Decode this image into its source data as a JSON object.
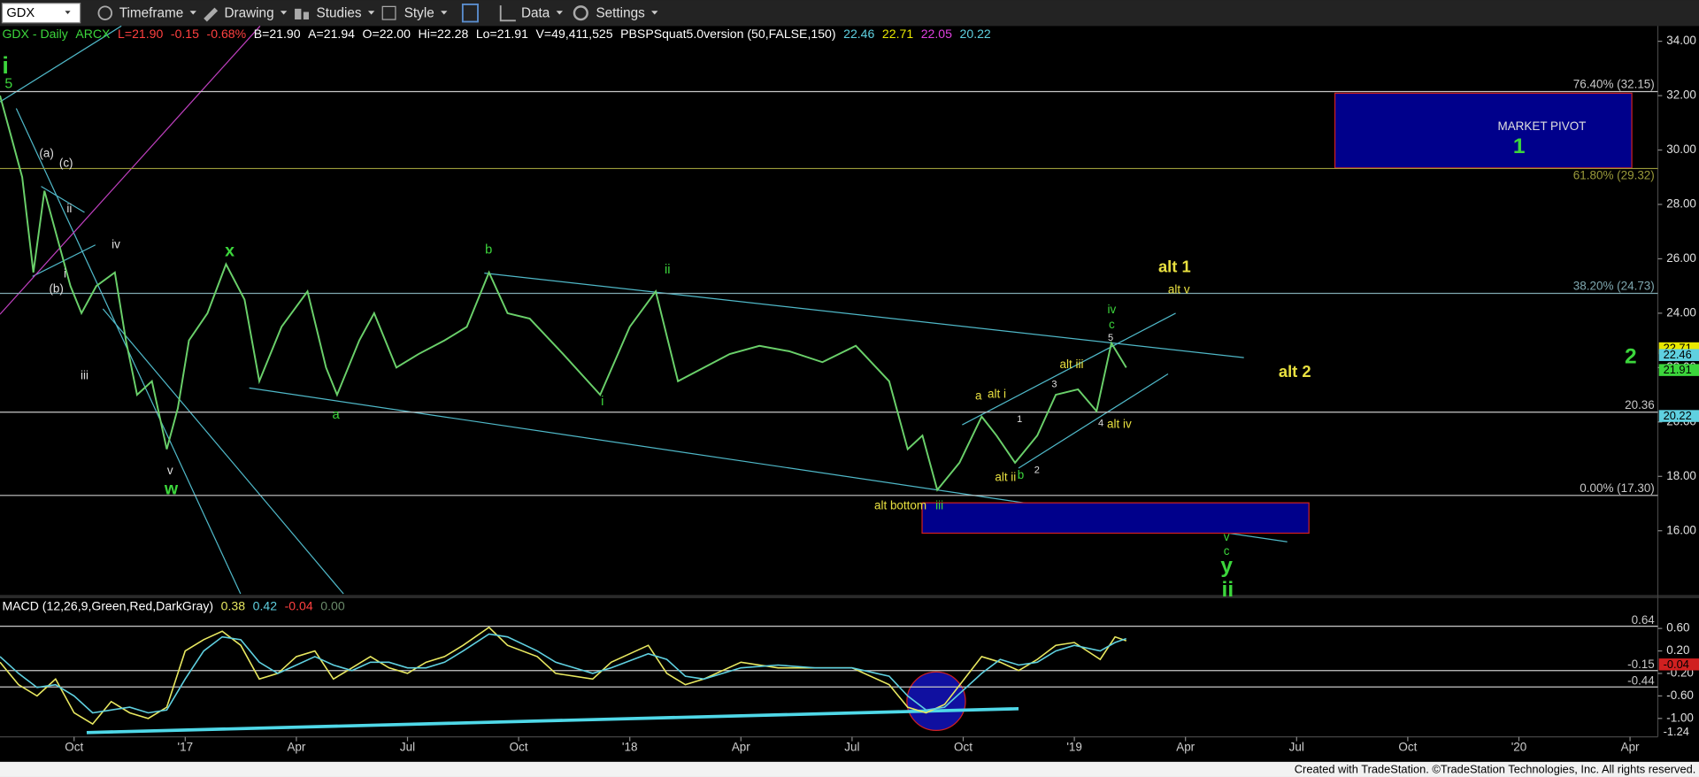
{
  "toolbar": {
    "symbol": "GDX",
    "menus": [
      "Timeframe",
      "Drawing",
      "Studies",
      "Style",
      "Data",
      "Settings"
    ]
  },
  "header": [
    {
      "text": "GDX - Daily",
      "color": "#3cd63c"
    },
    {
      "text": "ARCX",
      "color": "#3cd63c"
    },
    {
      "text": "L=21.90",
      "color": "#ff4040"
    },
    {
      "text": "-0.15",
      "color": "#ff4040"
    },
    {
      "text": "-0.68%",
      "color": "#ff4040"
    },
    {
      "text": "B=21.90",
      "color": "#ffffff"
    },
    {
      "text": "A=21.94",
      "color": "#ffffff"
    },
    {
      "text": "O=22.00",
      "color": "#ffffff"
    },
    {
      "text": "Hi=22.28",
      "color": "#ffffff"
    },
    {
      "text": "Lo=21.91",
      "color": "#ffffff"
    },
    {
      "text": "V=49,411,525",
      "color": "#ffffff"
    },
    {
      "text": "PBSPSquat5.0version (50,FALSE,150)",
      "color": "#ffffff"
    },
    {
      "text": "22.46",
      "color": "#5fd0e0"
    },
    {
      "text": "22.71",
      "color": "#e8e800"
    },
    {
      "text": "22.05",
      "color": "#e040e0"
    },
    {
      "text": "20.22",
      "color": "#5fd0e0"
    }
  ],
  "footer": "Created with TradeStation. ©TradeStation Technologies, Inc. All rights reserved.",
  "chart_data": [
    {
      "type": "line",
      "color": "#6ad06a",
      "x": [
        -1,
        -0.7,
        -0.4,
        -0.1,
        0.2,
        0.6,
        0.9,
        1.2,
        1.6,
        2.1,
        2.4,
        2.7,
        3.1,
        3.5,
        3.8,
        4.1,
        4.6,
        5.1,
        5.6,
        6.0,
        6.6,
        7.3,
        7.8,
        8.1,
        8.7,
        9.1,
        9.7,
        10.3,
        11.0,
        11.6,
        12.2,
        12.7,
        13.3,
        14.2,
        15.2,
        16.0,
        16.7,
        17.3,
        18.0,
        18.7,
        19.5,
        20.3,
        21.2,
        22.1,
        23.0,
        23.5,
        23.9,
        24.3,
        24.9,
        25.5,
        25.9,
        26.4,
        27.0,
        27.5,
        28.1,
        28.6,
        29.0,
        29.4
      ],
      "values": [
        32,
        30.5,
        29,
        25.5,
        28.5,
        26.5,
        25,
        24,
        25,
        25.5,
        23,
        21,
        21.5,
        19,
        20.5,
        23,
        24,
        25.8,
        24.5,
        21.5,
        23.5,
        24.8,
        22,
        21,
        23,
        24,
        22,
        22.5,
        23,
        23.5,
        25.5,
        24,
        23.8,
        22.5,
        21,
        23.5,
        24.8,
        21.5,
        22,
        22.5,
        22.8,
        22.6,
        22.2,
        22.8,
        21.5,
        19,
        19.5,
        17.5,
        18.5,
        20.2,
        19.5,
        18.5,
        19.5,
        21,
        21.2,
        20.4,
        22.9,
        22
      ],
      "xlim": [
        -1,
        43.75
      ],
      "ylim": [
        13.68,
        34.56
      ],
      "yticks": [
        {
          "value": 16,
          "label": "16.00"
        },
        {
          "value": 18,
          "label": "18.00"
        },
        {
          "value": 20,
          "label": "20.00"
        },
        {
          "value": 22,
          "label": "22.00"
        },
        {
          "value": 24,
          "label": "24.00"
        },
        {
          "value": 26,
          "label": "26.00"
        },
        {
          "value": 28,
          "label": "28.00"
        },
        {
          "value": 30,
          "label": "30.00"
        },
        {
          "value": 32,
          "label": "32.00"
        },
        {
          "value": 34,
          "label": "34.00"
        }
      ],
      "levels": [
        {
          "value": 32.15,
          "label": "76.40% (32.15)",
          "color": "#c8c8c8"
        },
        {
          "value": 29.32,
          "label": "61.80% (29.32)",
          "color": "#9a9a3a"
        },
        {
          "value": 24.73,
          "label": "38.20% (24.73)",
          "color": "#7fa8b0"
        },
        {
          "value": 20.36,
          "color": "#c8c8c8"
        },
        {
          "value": 17.3,
          "label": "0.00% (17.30)",
          "color": "#c8c8c8"
        }
      ],
      "tags": [
        {
          "value": 22.71,
          "color": "#e8e800"
        },
        {
          "value": 22.46,
          "color": "#5fd0e0"
        },
        {
          "value": 21.91,
          "color": "#3cd63c"
        },
        {
          "value": 20.22,
          "color": "#5fd0e0"
        }
      ],
      "annotations": [
        "i",
        "5",
        "(a)",
        "(c)",
        "ii",
        "i",
        "(b)",
        "iv",
        "iii",
        "v",
        "w",
        "x",
        "a",
        "b",
        "ii",
        "i",
        "alt bottom",
        "iii",
        "a",
        "alt i",
        "alt ii",
        "b",
        "1",
        "2",
        "3",
        "4",
        "alt iii",
        "alt iv",
        "iv",
        "c",
        "5",
        "alt 1",
        "alt v",
        "alt 2",
        "v",
        "c",
        "y",
        "ii",
        "MARKET PIVOT",
        "1",
        "2"
      ]
    },
    {
      "type": "line",
      "header": [
        {
          "text": "MACD (12,26,9,Green,Red,DarkGray)",
          "color": "#ffffff"
        },
        {
          "text": "0.38",
          "color": "#e8e860"
        },
        {
          "text": "0.42",
          "color": "#5fd0e0"
        },
        {
          "text": "-0.04",
          "color": "#ff4040"
        },
        {
          "text": "0.00",
          "color": "#6a8a6a"
        }
      ],
      "x": [
        -1,
        -0.5,
        0,
        0.5,
        1,
        1.5,
        2,
        2.5,
        3,
        3.5,
        4,
        4.5,
        5,
        5.5,
        6,
        6.5,
        7,
        7.5,
        8,
        8.5,
        9,
        9.5,
        10,
        10.5,
        11,
        11.5,
        12.2,
        12.7,
        13.5,
        14,
        15,
        15.5,
        16.5,
        17,
        17.5,
        18,
        19,
        20,
        21,
        22,
        23,
        23.5,
        24,
        24.5,
        25.5,
        26,
        26.5,
        27,
        27.5,
        28,
        28.7,
        29.1,
        29.4
      ],
      "series": [
        {
          "color": "#e8e860",
          "values": [
            0,
            -0.4,
            -0.6,
            -0.3,
            -0.9,
            -1.1,
            -0.7,
            -0.9,
            -1.0,
            -0.8,
            0.2,
            0.4,
            0.55,
            0.3,
            -0.3,
            -0.2,
            0.1,
            0.2,
            -0.3,
            -0.1,
            0.1,
            -0.1,
            -0.2,
            0,
            0.1,
            0.3,
            0.62,
            0.3,
            0.1,
            -0.2,
            -0.3,
            0,
            0.3,
            -0.2,
            -0.4,
            -0.3,
            0,
            -0.1,
            -0.1,
            -0.1,
            -0.4,
            -0.8,
            -0.9,
            -0.75,
            0.1,
            0,
            -0.15,
            0.05,
            0.3,
            0.35,
            0.05,
            0.45,
            0.38
          ]
        },
        {
          "color": "#5fd0e0",
          "values": [
            0.1,
            -0.2,
            -0.45,
            -0.4,
            -0.6,
            -0.9,
            -0.85,
            -0.8,
            -0.9,
            -0.85,
            -0.3,
            0.2,
            0.45,
            0.4,
            0.0,
            -0.2,
            -0.05,
            0.1,
            -0.05,
            -0.15,
            0,
            0,
            -0.1,
            -0.1,
            0,
            0.2,
            0.5,
            0.45,
            0.2,
            0,
            -0.2,
            -0.1,
            0.15,
            0.05,
            -0.25,
            -0.3,
            -0.1,
            -0.05,
            -0.1,
            -0.1,
            -0.25,
            -0.6,
            -0.85,
            -0.8,
            -0.2,
            0.05,
            -0.05,
            0,
            0.2,
            0.3,
            0.2,
            0.35,
            0.42
          ]
        }
      ],
      "xlim": [
        -1,
        43.75
      ],
      "ylim": [
        -1.29,
        0.83
      ],
      "yticks": [
        {
          "value": 0.6,
          "label": "0.60"
        },
        {
          "value": 0.2,
          "label": "0.20"
        },
        {
          "value": -0.2,
          "label": "-0.20"
        },
        {
          "value": -0.6,
          "label": "-0.60"
        },
        {
          "value": -1,
          "label": "-1.00"
        }
      ],
      "levels": [
        {
          "value": 0.64,
          "color": "#c8c8c8"
        },
        {
          "value": -0.15,
          "color": "#c8c8c8"
        },
        {
          "value": -0.44,
          "color": "#c8c8c8"
        }
      ],
      "tags": [
        {
          "value": -0.04,
          "color": "#d02020"
        },
        {
          "value": -1.24,
          "color": "#000000"
        }
      ],
      "xticks": [
        {
          "value": 1,
          "label": "Oct"
        },
        {
          "value": 4,
          "label": "'17"
        },
        {
          "value": 7,
          "label": "Apr"
        },
        {
          "value": 10,
          "label": "Jul"
        },
        {
          "value": 13,
          "label": "Oct"
        },
        {
          "value": 16,
          "label": "'18"
        },
        {
          "value": 19,
          "label": "Apr"
        },
        {
          "value": 22,
          "label": "Jul"
        },
        {
          "value": 25,
          "label": "Oct"
        },
        {
          "value": 28,
          "label": "'19"
        },
        {
          "value": 31,
          "label": "Apr"
        },
        {
          "value": 34,
          "label": "Jul"
        },
        {
          "value": 37,
          "label": "Oct"
        },
        {
          "value": 40,
          "label": "'20"
        },
        {
          "value": 43,
          "label": "Apr"
        }
      ]
    }
  ]
}
